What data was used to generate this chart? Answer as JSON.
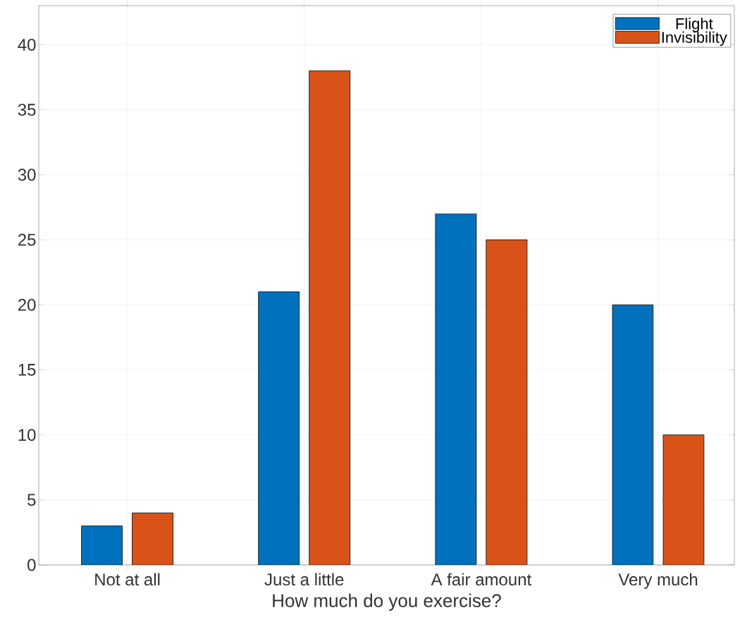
{
  "chart_data": {
    "type": "bar",
    "xlabel": "How much do you exercise?",
    "categories": [
      "Not at all",
      "Just a little",
      "A fair amount",
      "Very much"
    ],
    "series": [
      {
        "name": "Flight",
        "color": "#0072bd",
        "values": [
          3,
          21,
          27,
          20
        ]
      },
      {
        "name": "Invisibility",
        "color": "#d95319",
        "values": [
          4,
          38,
          25,
          10
        ]
      }
    ],
    "ylim": [
      0,
      43
    ],
    "yticks": [
      0,
      5,
      10,
      15,
      20,
      25,
      30,
      35,
      40
    ],
    "grid": true,
    "legend": "top right"
  }
}
